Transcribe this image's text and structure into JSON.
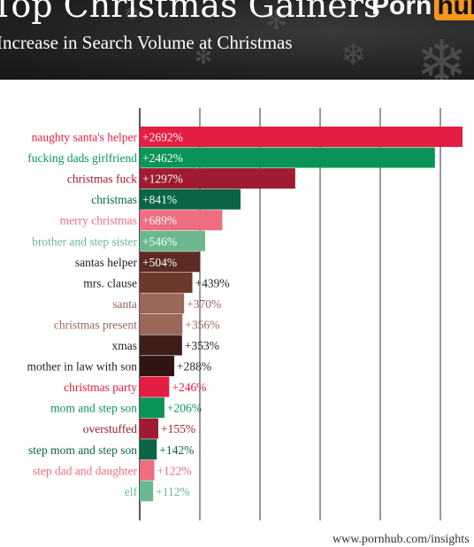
{
  "header": {
    "title": "Top Christmas Gainers",
    "subtitle": "Increase in Search Volume at Christmas",
    "logo_part1": "Porn",
    "logo_part2": "hub"
  },
  "footer": {
    "source": "www.pornhub.com/insights"
  },
  "colors": {
    "red": "#e31e43",
    "green": "#0b9457",
    "dark_red": "#9f1b31",
    "dark_green": "#0a6446",
    "pink": "#ee6d81",
    "light_green": "#6bb890",
    "brown": "#5b2b24",
    "medium_brown": "#6b3a2c",
    "light_brown": "#9a675a",
    "dark_brown": "#3d1f18",
    "very_dark_brown": "#2f1612"
  },
  "chart_data": {
    "type": "bar",
    "orientation": "horizontal",
    "title": "Top Christmas Gainers",
    "subtitle": "Increase in Search Volume at Christmas",
    "grid": true,
    "xlim": [
      0,
      2692
    ],
    "categories": [
      "naughty santa's helper",
      "fucking dads girlfriend",
      "christmas fuck",
      "christmas",
      "merry christmas",
      "brother and step sister",
      "santas helper",
      "mrs. clause",
      "santa",
      "christmas present",
      "xmas",
      "mother in law with son",
      "christmas party",
      "mom and step son",
      "overstuffed",
      "step mom and step son",
      "step dad and daughter",
      "elf"
    ],
    "values": [
      2692,
      2462,
      1297,
      841,
      689,
      546,
      504,
      439,
      370,
      356,
      353,
      288,
      246,
      206,
      155,
      142,
      122,
      112
    ],
    "value_labels": [
      "+2692%",
      "+2462%",
      "+1297%",
      "+841%",
      "+689%",
      "+546%",
      "+504%",
      "+439%",
      "+370%",
      "+356%",
      "+353%",
      "+288%",
      "+246%",
      "+206%",
      "+155%",
      "+142%",
      "+122%",
      "+112%"
    ],
    "bar_colors": [
      "#e31e43",
      "#0b9457",
      "#9f1b31",
      "#0a6446",
      "#ee6d81",
      "#6bb890",
      "#5b2b24",
      "#6b3a2c",
      "#9a675a",
      "#9a675a",
      "#3d1f18",
      "#2f1612",
      "#e31e43",
      "#0b9457",
      "#9f1b31",
      "#0a6446",
      "#ee6d81",
      "#6bb890"
    ],
    "label_colors": [
      "#e31e43",
      "#0b9457",
      "#9f1b31",
      "#0a6446",
      "#ee6d81",
      "#6bb890",
      "#222222",
      "#222222",
      "#9a675a",
      "#9a675a",
      "#222222",
      "#222222",
      "#e31e43",
      "#0b9457",
      "#9f1b31",
      "#0a6446",
      "#ee6d81",
      "#6bb890"
    ]
  }
}
